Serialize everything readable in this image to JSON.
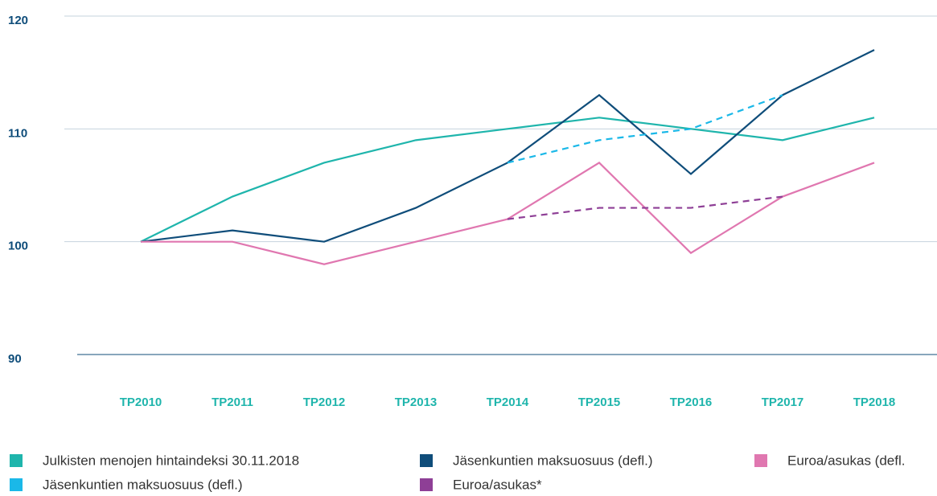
{
  "chart_data": {
    "type": "line",
    "categories": [
      "TP2010",
      "TP2011",
      "TP2012",
      "TP2013",
      "TP2014",
      "TP2015",
      "TP2016",
      "TP2017",
      "TP2018"
    ],
    "series": [
      {
        "name": "Julkisten menojen hintaindeksi 30.11.2018",
        "color": "#1fb5ac",
        "dash": false,
        "values": [
          100,
          104,
          107,
          109,
          110,
          111,
          110,
          109,
          111
        ]
      },
      {
        "name": "Jäsenkuntien maksuosuus (defl.)",
        "color": "#0f4d7a",
        "dash": false,
        "values": [
          100,
          101,
          100,
          103,
          107,
          113,
          106,
          113,
          117
        ]
      },
      {
        "name": "Euroa/asukas (defl.",
        "color": "#e077b0",
        "dash": false,
        "values": [
          100,
          100,
          98,
          100,
          102,
          107,
          99,
          104,
          107
        ]
      },
      {
        "name": "Jäsenkuntien maksuosuus (defl.)",
        "color": "#1ab8e8",
        "dash": true,
        "values": [
          null,
          null,
          null,
          null,
          107,
          109,
          110,
          113,
          null
        ]
      },
      {
        "name": "Euroa/asukas*",
        "color": "#8e3f96",
        "dash": true,
        "values": [
          null,
          null,
          null,
          null,
          102,
          103,
          103,
          104,
          null
        ]
      }
    ],
    "ylim": [
      90,
      120
    ],
    "yticks": [
      90,
      100,
      110,
      120
    ],
    "grid": true
  }
}
